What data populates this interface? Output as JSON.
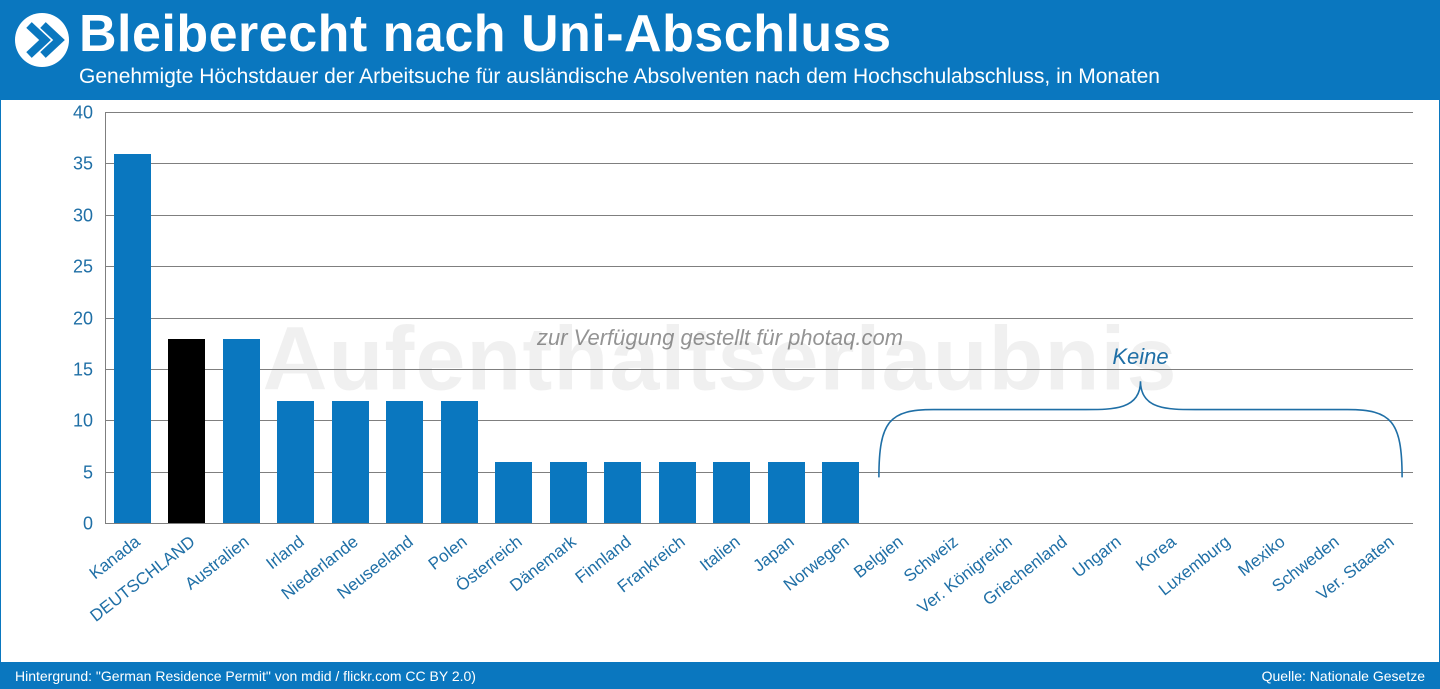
{
  "header": {
    "title": "Bleiberecht nach Uni-Abschluss",
    "subtitle": "Genehmigte Höchstdauer der Arbeitsuche für ausländische Absolventen nach dem Hochschulabschluss, in Monaten",
    "title_fontsize": 52,
    "subtitle_fontsize": 21,
    "bg_color": "#0a77bf",
    "text_color": "#ffffff"
  },
  "chart": {
    "type": "bar",
    "ylim": [
      0,
      40
    ],
    "ytick_step": 5,
    "yticks": [
      0,
      5,
      10,
      15,
      20,
      25,
      30,
      35,
      40
    ],
    "y_tick_fontsize": 18,
    "x_label_fontsize": 17,
    "x_label_rotation_deg": -38,
    "bar_width_ratio": 0.68,
    "gridline_color": "#7f7f7f",
    "gridline_width": 1,
    "axis_color": "#7f7f7f",
    "background_color": "#ffffff",
    "default_bar_color": "#0a77bf",
    "highlight_bar_color": "#000000",
    "label_color": "#1f6fa6",
    "categories": [
      {
        "label": "Kanada",
        "value": 36,
        "color": "#0a77bf"
      },
      {
        "label": "DEUTSCHLAND",
        "value": 18,
        "color": "#000000"
      },
      {
        "label": "Australien",
        "value": 18,
        "color": "#0a77bf"
      },
      {
        "label": "Irland",
        "value": 12,
        "color": "#0a77bf"
      },
      {
        "label": "Niederlande",
        "value": 12,
        "color": "#0a77bf"
      },
      {
        "label": "Neuseeland",
        "value": 12,
        "color": "#0a77bf"
      },
      {
        "label": "Polen",
        "value": 12,
        "color": "#0a77bf"
      },
      {
        "label": "Österreich",
        "value": 6,
        "color": "#0a77bf"
      },
      {
        "label": "Dänemark",
        "value": 6,
        "color": "#0a77bf"
      },
      {
        "label": "Finnland",
        "value": 6,
        "color": "#0a77bf"
      },
      {
        "label": "Frankreich",
        "value": 6,
        "color": "#0a77bf"
      },
      {
        "label": "Italien",
        "value": 6,
        "color": "#0a77bf"
      },
      {
        "label": "Japan",
        "value": 6,
        "color": "#0a77bf"
      },
      {
        "label": "Norwegen",
        "value": 6,
        "color": "#0a77bf"
      },
      {
        "label": "Belgien",
        "value": 0,
        "color": "#0a77bf"
      },
      {
        "label": "Schweiz",
        "value": 0,
        "color": "#0a77bf"
      },
      {
        "label": "Ver. Königreich",
        "value": 0,
        "color": "#0a77bf"
      },
      {
        "label": "Griechenland",
        "value": 0,
        "color": "#0a77bf"
      },
      {
        "label": "Ungarn",
        "value": 0,
        "color": "#0a77bf"
      },
      {
        "label": "Korea",
        "value": 0,
        "color": "#0a77bf"
      },
      {
        "label": "Luxemburg",
        "value": 0,
        "color": "#0a77bf"
      },
      {
        "label": "Mexiko",
        "value": 0,
        "color": "#0a77bf"
      },
      {
        "label": "Schweden",
        "value": 0,
        "color": "#0a77bf"
      },
      {
        "label": "Ver. Staaten",
        "value": 0,
        "color": "#0a77bf"
      }
    ],
    "brace": {
      "label": "Keine",
      "start_index": 14,
      "end_index": 23,
      "color": "#1f6fa6",
      "label_fontsize": 22,
      "stroke_width": 1.6
    }
  },
  "background_watermark": {
    "text": "Aufenthaltserlaubnis",
    "fontsize": 90,
    "color": "rgba(0,0,0,0.06)"
  },
  "overlay_watermark": {
    "text": "zur Verfügung gestellt für photaq.com",
    "fontsize": 22,
    "color": "rgba(60,60,60,0.55)"
  },
  "footer": {
    "left": "Hintergrund: \"German Residence Permit\" von mdid / flickr.com CC BY 2.0)",
    "right": "Quelle: Nationale Gesetze",
    "bg_color": "#0a77bf",
    "text_color": "#ffffff",
    "fontsize": 14
  }
}
